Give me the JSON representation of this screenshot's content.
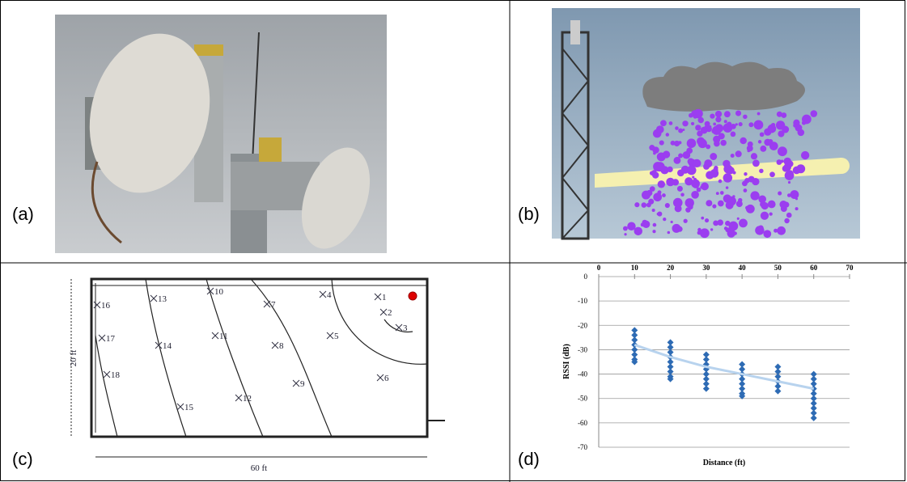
{
  "panels": {
    "a": {
      "label": "(a)"
    },
    "b": {
      "label": "(b)"
    },
    "c": {
      "label": "(c)",
      "height_label": "20 ft",
      "width_label": "60 ft",
      "points": [
        "1",
        "2",
        "3",
        "4",
        "5",
        "6",
        "7",
        "8",
        "9",
        "10",
        "11",
        "12",
        "13",
        "14",
        "15",
        "16",
        "17",
        "18"
      ]
    },
    "d": {
      "label": "(d)"
    }
  },
  "chart_data": {
    "type": "scatter",
    "x_label": "Distance (ft)",
    "y_label": "RSSI (dB)",
    "xlim": [
      0,
      70
    ],
    "xticks": [
      0,
      10,
      20,
      30,
      40,
      50,
      60,
      70
    ],
    "ylim": [
      -70,
      0
    ],
    "yticks": [
      0,
      -10,
      -20,
      -30,
      -40,
      -50,
      -60,
      -70
    ],
    "grid": true,
    "series": [
      {
        "color": "#2e6bb4",
        "x": [
          10,
          10,
          10,
          10,
          10,
          10,
          10,
          10,
          20,
          20,
          20,
          20,
          20,
          20,
          20,
          20,
          20,
          30,
          30,
          30,
          30,
          30,
          30,
          30,
          30,
          40,
          40,
          40,
          40,
          40,
          40,
          40,
          40,
          50,
          50,
          50,
          50,
          50,
          50,
          60,
          60,
          60,
          60,
          60,
          60,
          60,
          60,
          60,
          60
        ],
        "values": [
          -22,
          -24,
          -26,
          -28,
          -30,
          -32,
          -34,
          -35,
          -27,
          -29,
          -31,
          -33,
          -35,
          -37,
          -39,
          -41,
          -42,
          -32,
          -34,
          -36,
          -38,
          -40,
          -42,
          -44,
          -46,
          -36,
          -38,
          -40,
          -42,
          -44,
          -46,
          -48,
          -49,
          -37,
          -39,
          -41,
          -43,
          -45,
          -47,
          -40,
          -42,
          -44,
          -46,
          -48,
          -50,
          -52,
          -54,
          -56,
          -58
        ]
      },
      {
        "type": "line",
        "color": "#b8d3ee",
        "x": [
          10,
          20,
          30,
          40,
          50,
          60
        ],
        "values": [
          -28,
          -33,
          -37,
          -40,
          -43,
          -46
        ]
      }
    ]
  }
}
